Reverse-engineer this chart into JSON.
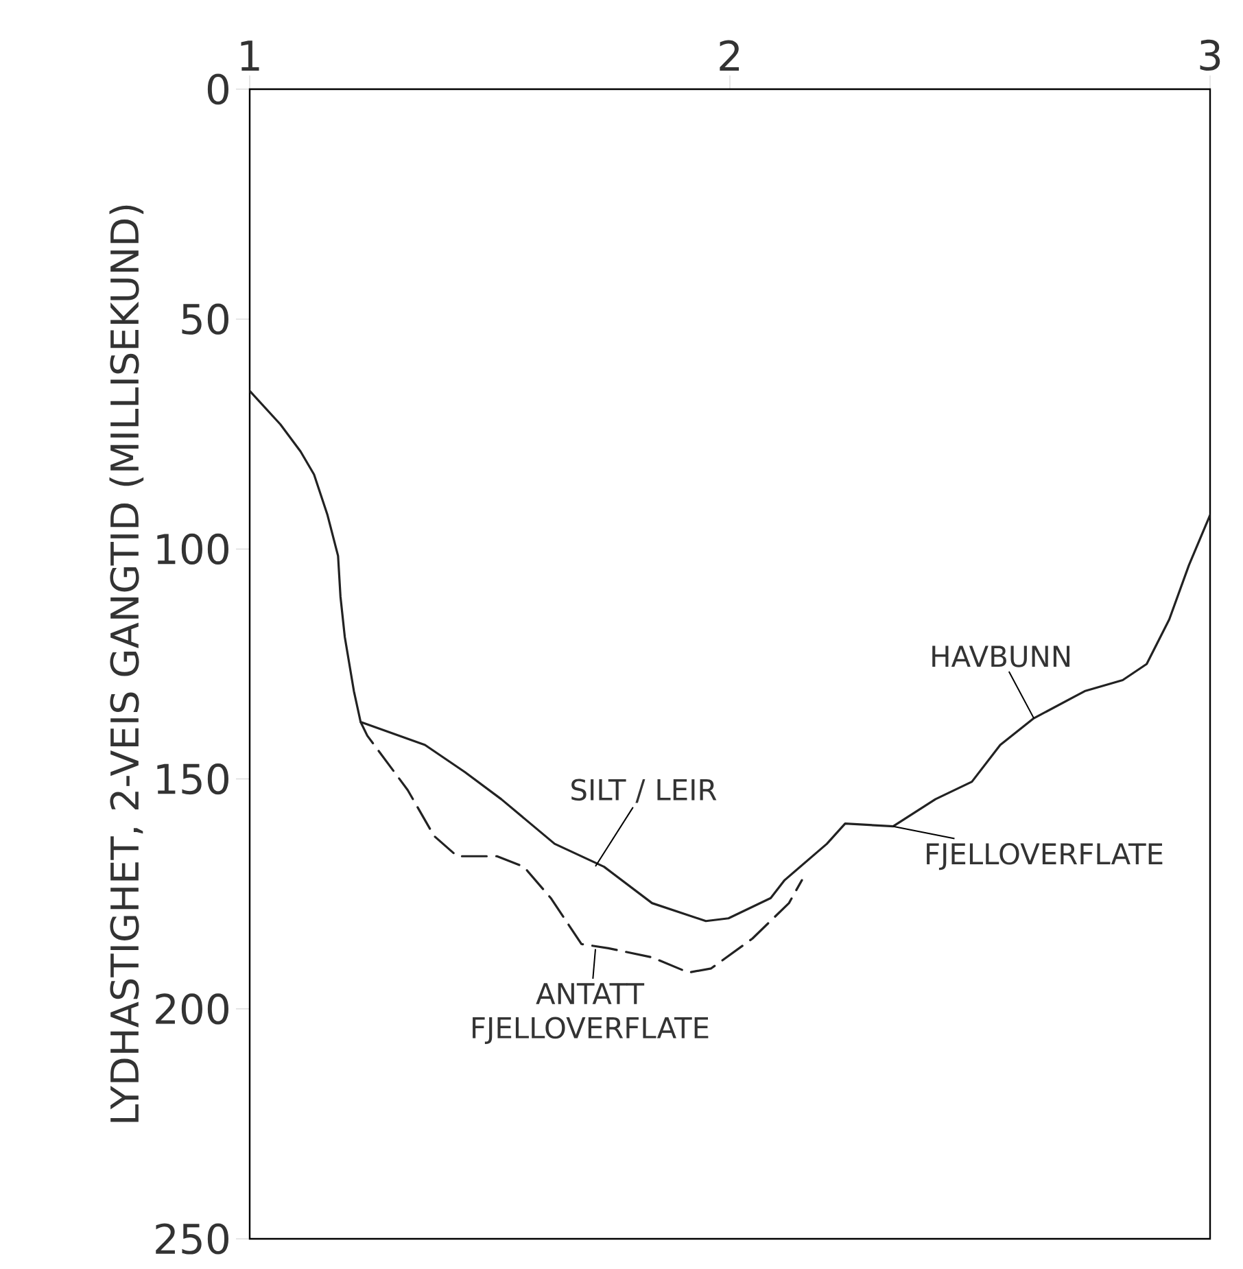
{
  "chart_data": {
    "type": "line",
    "ylabel": "LYDHASTIGHET, 2-VEIS GANGTID (MILLISEKUND)",
    "xlim": [
      1,
      3
    ],
    "xticks": [
      1,
      2,
      3
    ],
    "ylim": [
      250,
      0
    ],
    "yticks": [
      0,
      50,
      100,
      150,
      200,
      250
    ],
    "grid": false,
    "marker": "none",
    "series": [
      {
        "color": "#222222",
        "line_style": "solid",
        "x": [
          1.0,
          1.064,
          1.106,
          1.134,
          1.162,
          1.184,
          1.189,
          1.198,
          1.217,
          1.231,
          1.365,
          1.448,
          1.524,
          1.635,
          1.738,
          1.838,
          1.95,
          1.997,
          2.085,
          2.114,
          2.202,
          2.24,
          2.34,
          2.428,
          2.504,
          2.563,
          2.633,
          2.739,
          2.818,
          2.868,
          2.915,
          2.956,
          3.0
        ],
        "values": [
          65.6,
          72.9,
          78.8,
          83.8,
          92.6,
          101.5,
          110.3,
          119.1,
          130.9,
          137.6,
          142.6,
          148.5,
          154.4,
          164.1,
          169.1,
          177,
          180.9,
          180.3,
          175.9,
          172,
          164.1,
          159.7,
          160.3,
          154.4,
          150.6,
          142.6,
          136.8,
          130.9,
          128.5,
          125,
          115.3,
          103.5,
          92.6
        ]
      },
      {
        "color": "#222222",
        "line_style": "dashed",
        "x": [
          1.231,
          1.245,
          1.329,
          1.384,
          1.432,
          1.515,
          1.571,
          1.627,
          1.691,
          1.747,
          1.838,
          1.914,
          1.961,
          2.047,
          2.123,
          2.15
        ],
        "values": [
          137.6,
          140.6,
          152.4,
          162.4,
          166.8,
          166.8,
          169.1,
          175.9,
          185.9,
          186.8,
          188.8,
          192.1,
          191.2,
          184.7,
          177,
          172
        ]
      }
    ],
    "annotations": [
      {
        "text": "SILT / LEIR",
        "x": 1.72,
        "y": 169
      },
      {
        "text": "HAVBUNN",
        "x": 2.633,
        "y": 136.8
      },
      {
        "text": "FJELLOVERFLATE",
        "x": 2.34,
        "y": 160.3
      },
      {
        "text": "ANTATT FJELLOVERFLATE",
        "x": 1.72,
        "y": 187
      }
    ]
  }
}
